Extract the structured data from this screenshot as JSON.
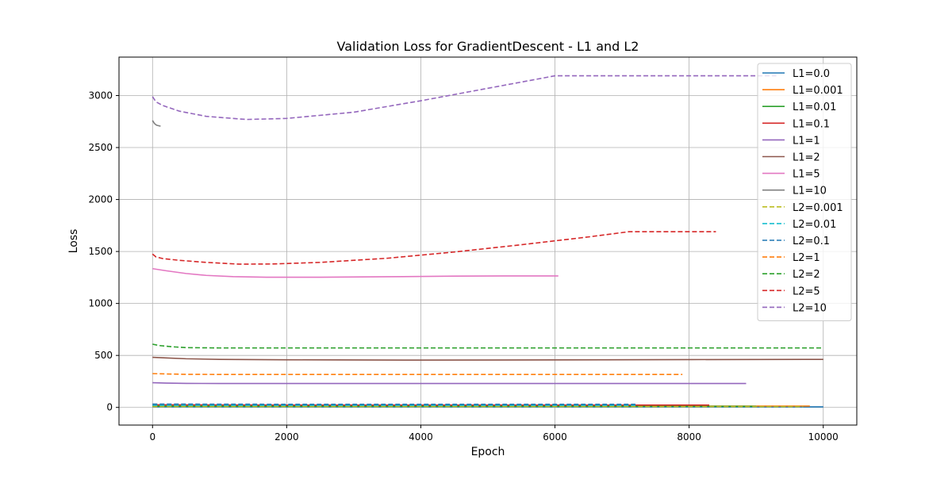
{
  "chart_data": {
    "type": "line",
    "title": "Validation Loss for GradientDescent - L1 and L2",
    "xlabel": "Epoch",
    "ylabel": "Loss",
    "xlim": [
      -500,
      10500
    ],
    "ylim": [
      -170,
      3370
    ],
    "xticks": [
      0,
      2000,
      4000,
      6000,
      8000,
      10000
    ],
    "yticks": [
      0,
      500,
      1000,
      1500,
      2000,
      2500,
      3000
    ],
    "grid": true,
    "legend_position": "top-right",
    "series": [
      {
        "name": "L1=0.0",
        "color": "#1f77b4",
        "dash": false,
        "points": [
          [
            0,
            5
          ],
          [
            2000,
            5
          ],
          [
            4000,
            5
          ],
          [
            6000,
            5
          ],
          [
            8000,
            5
          ],
          [
            10000,
            5
          ]
        ]
      },
      {
        "name": "L1=0.001",
        "color": "#ff7f0e",
        "dash": false,
        "points": [
          [
            0,
            15
          ],
          [
            2000,
            13
          ],
          [
            4000,
            13
          ],
          [
            6000,
            13
          ],
          [
            8000,
            13
          ],
          [
            9800,
            13
          ]
        ]
      },
      {
        "name": "L1=0.01",
        "color": "#2ca02c",
        "dash": false,
        "points": [
          [
            0,
            12
          ],
          [
            2000,
            11
          ],
          [
            4000,
            11
          ],
          [
            6000,
            11
          ],
          [
            8000,
            11
          ],
          [
            9000,
            11
          ]
        ]
      },
      {
        "name": "L1=0.1",
        "color": "#d62728",
        "dash": false,
        "points": [
          [
            0,
            25
          ],
          [
            2000,
            22
          ],
          [
            4000,
            22
          ],
          [
            6000,
            22
          ],
          [
            8000,
            22
          ],
          [
            8300,
            22
          ]
        ]
      },
      {
        "name": "L1=1",
        "color": "#9467bd",
        "dash": false,
        "points": [
          [
            0,
            238
          ],
          [
            200,
            234
          ],
          [
            500,
            231
          ],
          [
            1000,
            230
          ],
          [
            3000,
            230
          ],
          [
            6000,
            230
          ],
          [
            8850,
            230
          ]
        ]
      },
      {
        "name": "L1=2",
        "color": "#8c564b",
        "dash": false,
        "points": [
          [
            0,
            482
          ],
          [
            200,
            476
          ],
          [
            500,
            468
          ],
          [
            1000,
            462
          ],
          [
            2000,
            458
          ],
          [
            4000,
            455
          ],
          [
            6000,
            457
          ],
          [
            8000,
            460
          ],
          [
            10000,
            462
          ]
        ]
      },
      {
        "name": "L1=5",
        "color": "#e377c2",
        "dash": false,
        "points": [
          [
            0,
            1335
          ],
          [
            200,
            1315
          ],
          [
            500,
            1288
          ],
          [
            800,
            1270
          ],
          [
            1200,
            1258
          ],
          [
            1700,
            1252
          ],
          [
            2500,
            1252
          ],
          [
            3500,
            1257
          ],
          [
            4500,
            1263
          ],
          [
            5500,
            1265
          ],
          [
            6050,
            1265
          ]
        ]
      },
      {
        "name": "L1=10",
        "color": "#7f7f7f",
        "dash": false,
        "points": [
          [
            0,
            2760
          ],
          [
            30,
            2730
          ],
          [
            60,
            2715
          ],
          [
            120,
            2705
          ]
        ]
      },
      {
        "name": "L2=0.001",
        "color": "#bcbd22",
        "dash": true,
        "points": [
          [
            0,
            8
          ],
          [
            2000,
            8
          ],
          [
            4000,
            8
          ],
          [
            6000,
            8
          ],
          [
            8000,
            8
          ],
          [
            9700,
            8
          ]
        ]
      },
      {
        "name": "L2=0.01",
        "color": "#17becf",
        "dash": true,
        "points": [
          [
            0,
            20
          ],
          [
            2000,
            20
          ],
          [
            4000,
            20
          ],
          [
            6000,
            20
          ],
          [
            7200,
            20
          ]
        ]
      },
      {
        "name": "L2=0.1",
        "color": "#1f77b4",
        "dash": true,
        "points": [
          [
            0,
            32
          ],
          [
            2000,
            30
          ],
          [
            4000,
            30
          ],
          [
            6000,
            30
          ],
          [
            7200,
            30
          ]
        ]
      },
      {
        "name": "L2=1",
        "color": "#ff7f0e",
        "dash": true,
        "points": [
          [
            0,
            325
          ],
          [
            200,
            322
          ],
          [
            500,
            318
          ],
          [
            1000,
            317
          ],
          [
            4000,
            317
          ],
          [
            7900,
            317
          ]
        ]
      },
      {
        "name": "L2=2",
        "color": "#2ca02c",
        "dash": true,
        "points": [
          [
            0,
            608
          ],
          [
            100,
            595
          ],
          [
            300,
            583
          ],
          [
            500,
            575
          ],
          [
            1000,
            572
          ],
          [
            4000,
            572
          ],
          [
            7000,
            572
          ],
          [
            10000,
            572
          ]
        ]
      },
      {
        "name": "L2=5",
        "color": "#d62728",
        "dash": true,
        "points": [
          [
            0,
            1475
          ],
          [
            50,
            1448
          ],
          [
            150,
            1432
          ],
          [
            400,
            1415
          ],
          [
            800,
            1395
          ],
          [
            1300,
            1378
          ],
          [
            1800,
            1380
          ],
          [
            2500,
            1395
          ],
          [
            3500,
            1435
          ],
          [
            4500,
            1495
          ],
          [
            5500,
            1565
          ],
          [
            6500,
            1640
          ],
          [
            7100,
            1690
          ],
          [
            8400,
            1690
          ]
        ]
      },
      {
        "name": "L2=10",
        "color": "#9467bd",
        "dash": true,
        "points": [
          [
            0,
            2990
          ],
          [
            50,
            2940
          ],
          [
            150,
            2905
          ],
          [
            400,
            2850
          ],
          [
            800,
            2800
          ],
          [
            1400,
            2770
          ],
          [
            2000,
            2780
          ],
          [
            3000,
            2840
          ],
          [
            4000,
            2950
          ],
          [
            5000,
            3070
          ],
          [
            6000,
            3190
          ],
          [
            9000,
            3190
          ],
          [
            9300,
            3190
          ]
        ]
      }
    ]
  }
}
